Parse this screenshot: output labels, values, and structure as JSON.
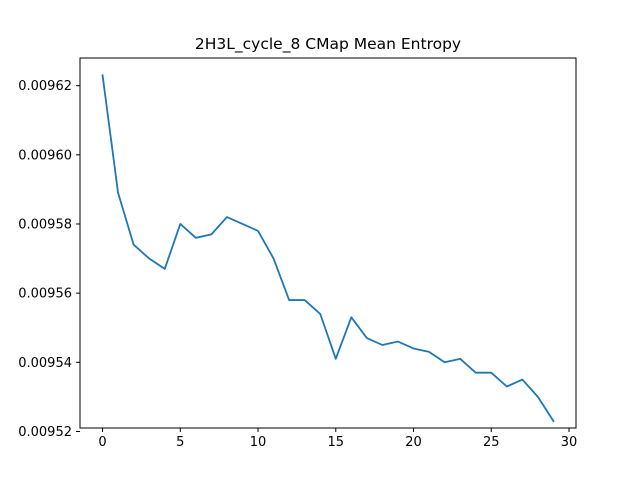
{
  "chart_data": {
    "type": "line",
    "title": "2H3L_cycle_8 CMap Mean Entropy",
    "xlabel": "",
    "ylabel": "",
    "xlim": [
      -1.45,
      30.45
    ],
    "ylim": [
      0.009521,
      0.009628
    ],
    "xticks": [
      0,
      5,
      10,
      15,
      20,
      25,
      30
    ],
    "xtick_labels": [
      "0",
      "5",
      "10",
      "15",
      "20",
      "25",
      "30"
    ],
    "yticks": [
      0.00952,
      0.00954,
      0.00956,
      0.00958,
      0.0096,
      0.00962
    ],
    "ytick_labels": [
      "0.00952",
      "0.00954",
      "0.00956",
      "0.00958",
      "0.00960",
      "0.00962"
    ],
    "grid": false,
    "legend": "none",
    "series": [
      {
        "color": "#1f77b4",
        "x": [
          0,
          1,
          2,
          3,
          4,
          5,
          6,
          7,
          8,
          9,
          10,
          11,
          12,
          13,
          14,
          15,
          16,
          17,
          18,
          19,
          20,
          21,
          22,
          23,
          24,
          25,
          26,
          27,
          28,
          29
        ],
        "y": [
          0.009623,
          0.009589,
          0.009574,
          0.00957,
          0.009567,
          0.00958,
          0.009576,
          0.009577,
          0.009582,
          0.00958,
          0.009578,
          0.00957,
          0.009558,
          0.009558,
          0.009554,
          0.009541,
          0.009553,
          0.009547,
          0.009545,
          0.009546,
          0.009544,
          0.009543,
          0.00954,
          0.009541,
          0.009537,
          0.009537,
          0.009533,
          0.009535,
          0.00953,
          0.009523
        ]
      }
    ]
  }
}
